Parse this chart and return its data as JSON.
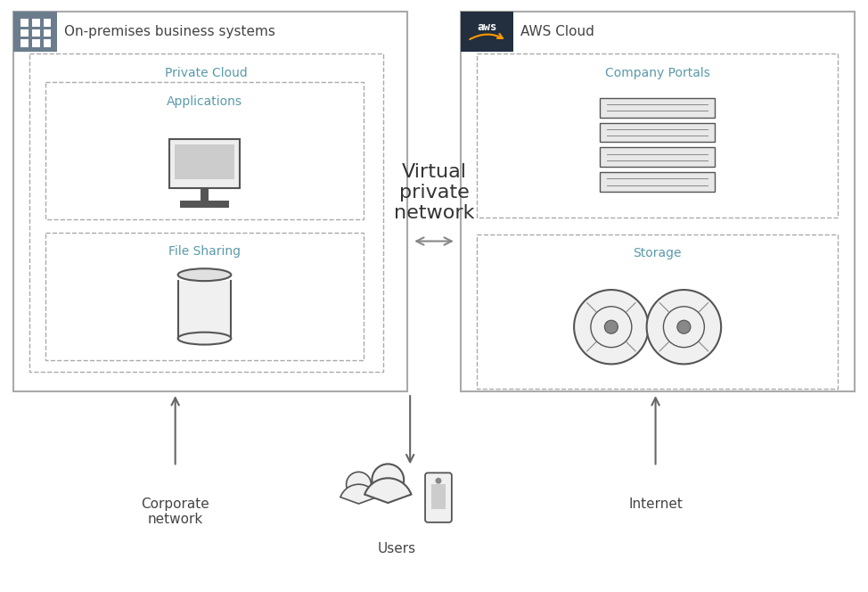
{
  "bg_color": "#ffffff",
  "text_color_dark": "#444444",
  "text_color_teal": "#5a9aaa",
  "border_solid": "#aaaaaa",
  "border_dashed": "#aaaaaa",
  "aws_dark": "#232f3e",
  "aws_orange": "#ff9900",
  "icon_bg_onprem": "#6b7c8d",
  "title_onprem": "On-premises business systems",
  "title_aws": "AWS Cloud",
  "label_private_cloud": "Private Cloud",
  "label_applications": "Applications",
  "label_file_sharing": "File Sharing",
  "label_company_portals": "Company Portals",
  "label_storage": "Storage",
  "label_vpn": "Virtual\nprivate\nnetwork",
  "label_corporate_network": "Corporate\nnetwork",
  "label_internet": "Internet",
  "label_users": "Users"
}
